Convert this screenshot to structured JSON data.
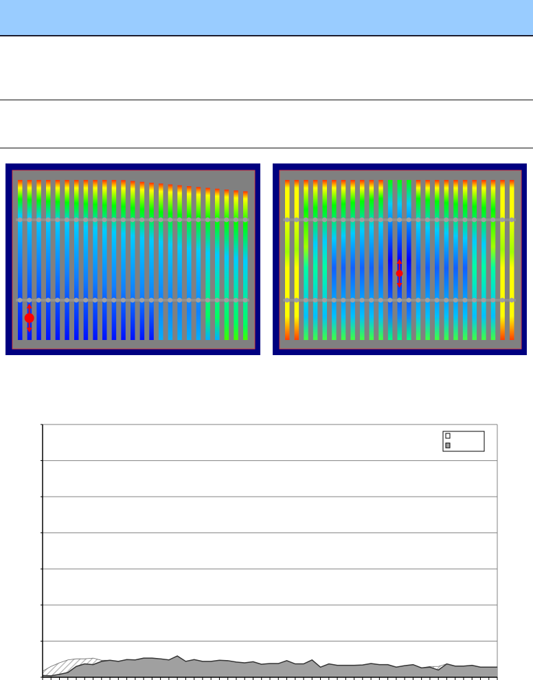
{
  "header": {
    "color": "#99ccff"
  },
  "figures": {
    "left_panel": {
      "frame_color": "#000080",
      "background_color": "#808080",
      "marker_color": "#ff0000"
    },
    "right_panel": {
      "frame_color": "#000080",
      "background_color": "#808080",
      "marker_color": "#ff0000"
    }
  },
  "chart_data": {
    "type": "area",
    "title": "",
    "xlabel": "",
    "ylabel": "",
    "grid": true,
    "ylim": [
      0,
      7
    ],
    "x_count": 55,
    "legend_placement": "top-right",
    "series": [
      {
        "fill": "hatched",
        "color": "#ffffff",
        "values": [
          0.17,
          0.3,
          0.4,
          0.48,
          0.51,
          0.51,
          0.53,
          0.47,
          0.47,
          0.44,
          0.49,
          0.48,
          0.53,
          0.53,
          0.51,
          0.48,
          0.59,
          0.44,
          0.49,
          0.44,
          0.44,
          0.47,
          0.46,
          0.42,
          0.4,
          0.43,
          0.36,
          0.38,
          0.38,
          0.46,
          0.37,
          0.37,
          0.48,
          0.28,
          0.37,
          0.33,
          0.33,
          0.33,
          0.34,
          0.38,
          0.35,
          0.35,
          0.28,
          0.32,
          0.35,
          0.26,
          0.3,
          0.3,
          0.37,
          0.31,
          0.31,
          0.33,
          0.28,
          0.28,
          0.28
        ]
      },
      {
        "fill": "solid",
        "color": "#a0a0a0",
        "values": [
          0.05,
          0.04,
          0.08,
          0.13,
          0.3,
          0.37,
          0.35,
          0.44,
          0.47,
          0.44,
          0.49,
          0.48,
          0.53,
          0.53,
          0.51,
          0.48,
          0.59,
          0.44,
          0.49,
          0.44,
          0.44,
          0.47,
          0.46,
          0.42,
          0.4,
          0.43,
          0.36,
          0.38,
          0.38,
          0.46,
          0.37,
          0.37,
          0.48,
          0.28,
          0.37,
          0.33,
          0.33,
          0.33,
          0.34,
          0.38,
          0.35,
          0.35,
          0.28,
          0.32,
          0.35,
          0.26,
          0.28,
          0.2,
          0.37,
          0.31,
          0.31,
          0.33,
          0.28,
          0.28,
          0.28
        ]
      }
    ]
  }
}
